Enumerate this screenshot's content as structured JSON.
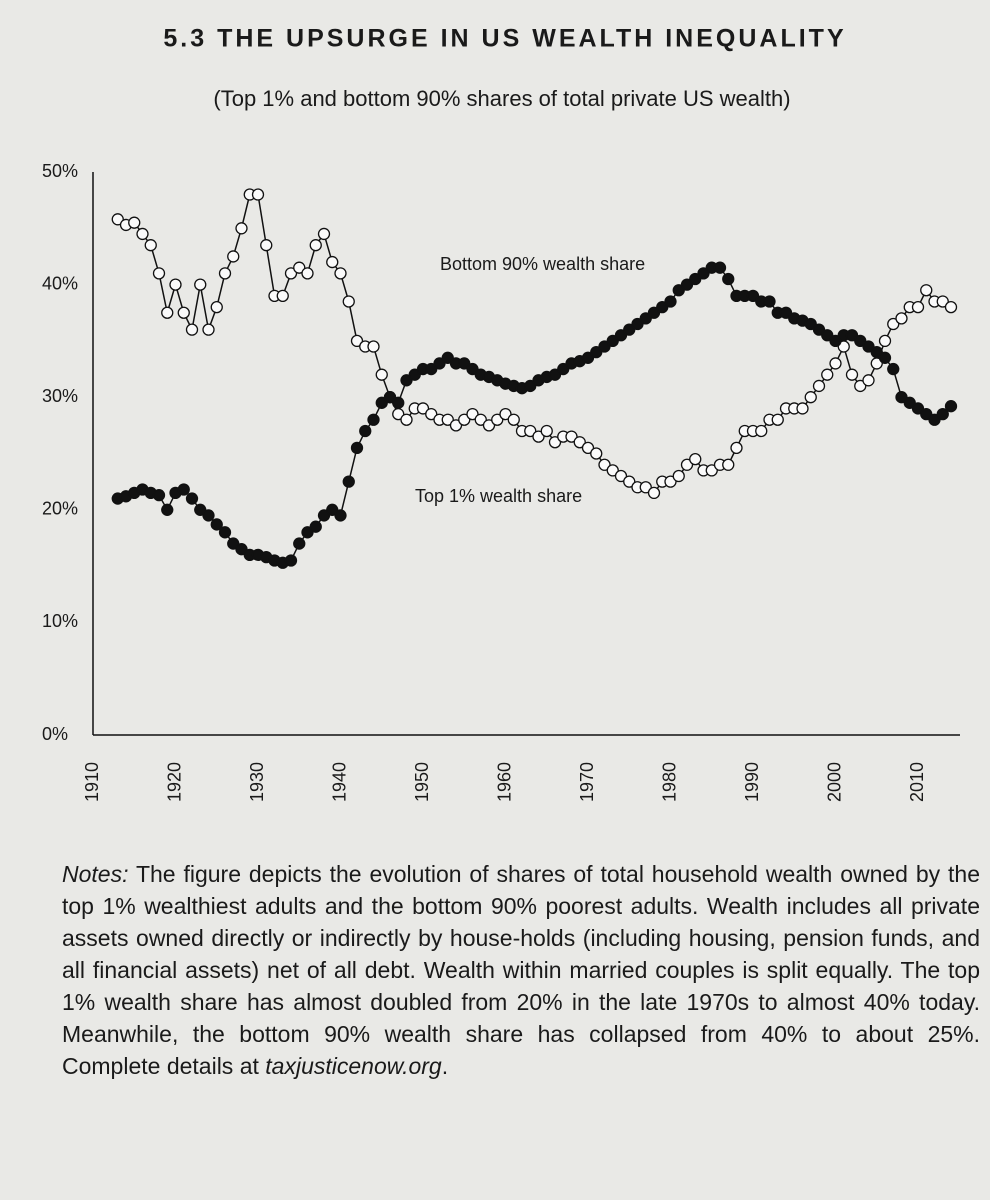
{
  "chart_data": {
    "type": "line",
    "title": "5.3 THE UPSURGE IN US WEALTH INEQUALITY",
    "subtitle": "(Top 1% and bottom 90% shares of total private US wealth)",
    "x": [
      1913,
      1914,
      1915,
      1916,
      1917,
      1918,
      1919,
      1920,
      1921,
      1922,
      1923,
      1924,
      1925,
      1926,
      1927,
      1928,
      1929,
      1930,
      1931,
      1932,
      1933,
      1934,
      1935,
      1936,
      1937,
      1938,
      1939,
      1940,
      1941,
      1942,
      1943,
      1944,
      1945,
      1946,
      1947,
      1948,
      1949,
      1950,
      1951,
      1952,
      1953,
      1954,
      1955,
      1956,
      1957,
      1958,
      1959,
      1960,
      1961,
      1962,
      1963,
      1964,
      1965,
      1966,
      1967,
      1968,
      1969,
      1970,
      1971,
      1972,
      1973,
      1974,
      1975,
      1976,
      1977,
      1978,
      1979,
      1980,
      1981,
      1982,
      1983,
      1984,
      1985,
      1986,
      1987,
      1988,
      1989,
      1990,
      1991,
      1992,
      1993,
      1994,
      1995,
      1996,
      1997,
      1998,
      1999,
      2000,
      2001,
      2002,
      2003,
      2004,
      2005,
      2006,
      2007,
      2008,
      2009,
      2010,
      2011,
      2012,
      2013,
      2014
    ],
    "series": [
      {
        "name": "Top 1% wealth share",
        "color": "#111111",
        "marker": "open",
        "values": [
          45.8,
          45.3,
          45.5,
          44.5,
          43.5,
          41,
          37.5,
          40,
          37.5,
          36,
          40,
          36,
          38,
          41,
          42.5,
          45,
          48,
          48,
          43.5,
          39,
          39,
          41,
          41.5,
          41,
          43.5,
          44.5,
          42,
          41,
          38.5,
          35,
          34.5,
          34.5,
          32,
          30,
          28.5,
          28,
          29,
          29,
          28.5,
          28,
          28,
          27.5,
          28,
          28.5,
          28,
          27.5,
          28,
          28.5,
          28,
          27,
          27,
          26.5,
          27,
          26,
          26.5,
          26.5,
          26,
          25.5,
          25,
          24,
          23.5,
          23,
          22.5,
          22,
          22,
          21.5,
          22.5,
          22.5,
          23,
          24,
          24.5,
          23.5,
          23.5,
          24,
          24,
          25.5,
          27,
          27,
          27,
          28,
          28,
          29,
          29,
          29,
          30,
          31,
          32,
          33,
          34.5,
          32,
          31,
          31.5,
          33,
          35,
          36.5,
          37,
          38,
          38,
          39.5,
          38.5,
          38.5,
          38
        ]
      },
      {
        "name": "Bottom 90% wealth share",
        "color": "#111111",
        "marker": "filled",
        "values": [
          21,
          21.2,
          21.5,
          21.8,
          21.5,
          21.3,
          20,
          21.5,
          21.8,
          21,
          20,
          19.5,
          18.7,
          18,
          17,
          16.5,
          16,
          16,
          15.8,
          15.5,
          15.3,
          15.5,
          17,
          18,
          18.5,
          19.5,
          20,
          19.5,
          22.5,
          25.5,
          27,
          28,
          29.5,
          30,
          29.5,
          31.5,
          32,
          32.5,
          32.5,
          33,
          33.5,
          33,
          33,
          32.5,
          32,
          31.8,
          31.5,
          31.2,
          31,
          30.8,
          31,
          31.5,
          31.8,
          32,
          32.5,
          33,
          33.2,
          33.5,
          34,
          34.5,
          35,
          35.5,
          36,
          36.5,
          37,
          37.5,
          38,
          38.5,
          39.5,
          40,
          40.5,
          41,
          41.5,
          41.5,
          40.5,
          39,
          39,
          39,
          38.5,
          38.5,
          37.5,
          37.5,
          37,
          36.8,
          36.5,
          36,
          35.5,
          35,
          35.5,
          35.5,
          35,
          34.5,
          34,
          33.5,
          32.5,
          30,
          29.5,
          29,
          28.5,
          28,
          28.5,
          29.2
        ]
      }
    ],
    "xlim": [
      1910,
      2015
    ],
    "xticks": [
      1910,
      1920,
      1930,
      1940,
      1950,
      1960,
      1970,
      1980,
      1990,
      2000,
      2010
    ],
    "ylim": [
      0,
      50
    ],
    "yticks": [
      {
        "value": 0,
        "label": "0%"
      },
      {
        "value": 10,
        "label": "10%"
      },
      {
        "value": 20,
        "label": "20%"
      },
      {
        "value": 30,
        "label": "30%"
      },
      {
        "value": 40,
        "label": "40%"
      },
      {
        "value": 50,
        "label": "50%"
      }
    ],
    "grid": false,
    "notes": {
      "label": "Notes:",
      "text": "The figure depicts the evolution of shares of total household wealth owned by the top 1% wealthiest adults and the bottom 90% poorest adults. Wealth includes all private assets owned directly or indirectly by house-holds (including housing, pension funds, and all financial assets) net of all debt. Wealth within married couples is split equally. The top 1% wealth share has almost doubled from 20% in the late 1970s to almost 40% today. Meanwhile, the bottom 90% wealth share has collapsed from 40% to about 25%. Complete details at",
      "link": "taxjusticenow.org",
      "end": "."
    }
  }
}
